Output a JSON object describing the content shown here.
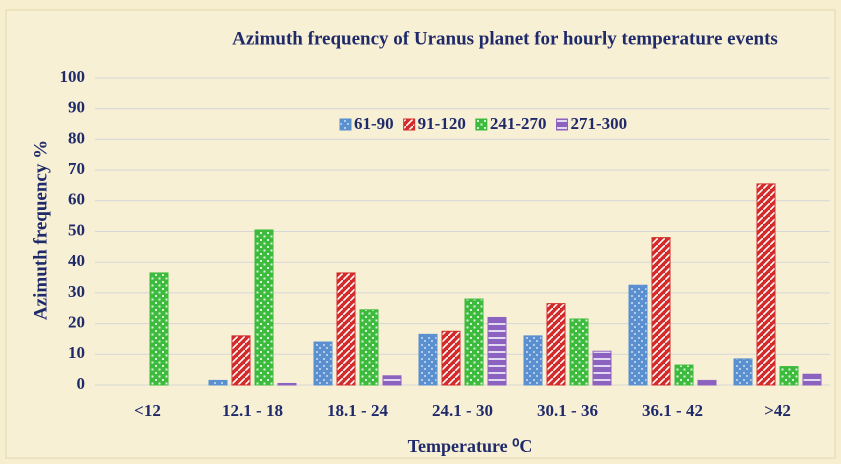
{
  "chart_data": {
    "type": "bar",
    "title": "Azimuth frequency of Uranus planet for hourly temperature events",
    "x_label": "Temperature ⁰C",
    "y_label": "Azimuth frequency %",
    "categories": [
      "<12",
      "12.1 - 18",
      "18.1 - 24",
      "24.1 - 30",
      "30.1 - 36",
      "36.1 - 42",
      ">42"
    ],
    "series": [
      {
        "name": "61-90",
        "color": "#5a8fd0",
        "values": [
          0,
          1.5,
          14,
          16.5,
          16,
          32.5,
          8.5
        ]
      },
      {
        "name": "91-120",
        "color": "#d32a2a",
        "values": [
          0,
          16,
          36.5,
          17.5,
          26.5,
          48,
          65.5
        ]
      },
      {
        "name": "241-270",
        "color": "#3dbb3d",
        "values": [
          36.5,
          50.5,
          24.5,
          28,
          21.5,
          6.5,
          6
        ]
      },
      {
        "name": "271-300",
        "color": "#8c62c0",
        "values": [
          0,
          0.5,
          3,
          22,
          11,
          1.5,
          3.5
        ]
      }
    ],
    "ylim": [
      0,
      100
    ],
    "yticks": [
      0,
      10,
      20,
      30,
      40,
      50,
      60,
      70,
      80,
      90,
      100
    ],
    "grid": true,
    "legend": "top"
  }
}
